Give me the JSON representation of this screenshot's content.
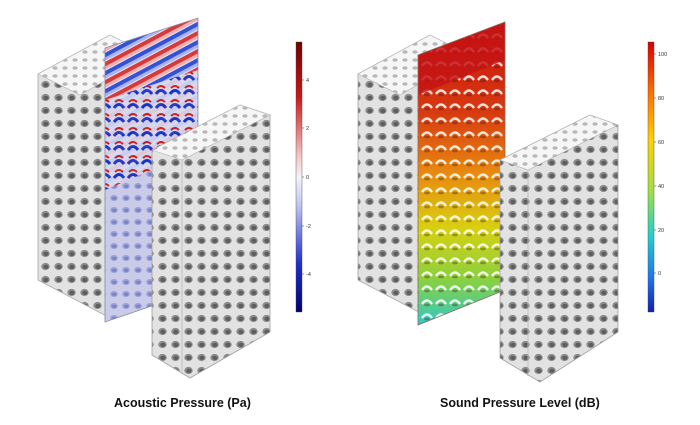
{
  "panels": [
    {
      "caption": "Acoustic Pressure (Pa)",
      "colorbar": {
        "ticks": [
          "4",
          "2",
          "0",
          "-2",
          "-4"
        ],
        "colors": [
          "#7a0000",
          "#d21b1b",
          "#f3f3f6",
          "#2a3fd6",
          "#00007a"
        ]
      }
    },
    {
      "caption": "Sound Pressure Level (dB)",
      "colorbar": {
        "ticks": [
          "100",
          "80",
          "60",
          "40",
          "20",
          "0"
        ],
        "colors": [
          "#e81010",
          "#ff8a00",
          "#e8e000",
          "#20d0c0",
          "#1840e0"
        ]
      }
    }
  ]
}
